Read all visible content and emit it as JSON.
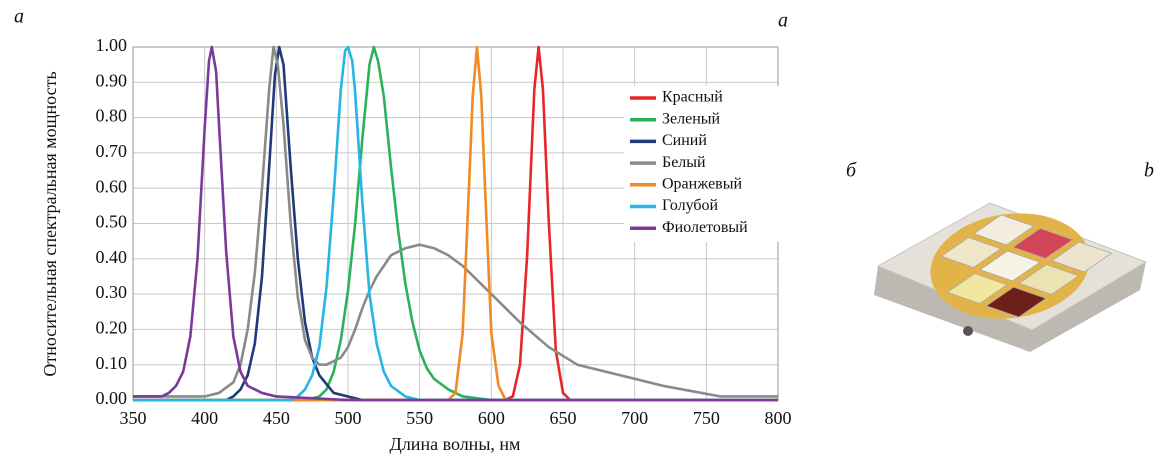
{
  "chart_data": {
    "type": "line",
    "y_label": "Относительная спектральная мощность",
    "x_label": "Длина волны, нм",
    "panel_labels": [
      "a",
      "a",
      "б",
      "b"
    ],
    "xlim": [
      350,
      800
    ],
    "xticks": [
      350,
      400,
      450,
      500,
      550,
      600,
      650,
      700,
      750,
      800
    ],
    "ylim": [
      0,
      1
    ],
    "yticks": [
      {
        "value": 0,
        "label": "0.00"
      },
      {
        "value": 0.1,
        "label": "0.10"
      },
      {
        "value": 0.2,
        "label": "0.20"
      },
      {
        "value": 0.3,
        "label": "0.30"
      },
      {
        "value": 0.4,
        "label": "0.40"
      },
      {
        "value": 0.5,
        "label": "0.50"
      },
      {
        "value": 0.6,
        "label": "0.60"
      },
      {
        "value": 0.7,
        "label": "0.70"
      },
      {
        "value": 0.8,
        "label": "0.80"
      },
      {
        "value": 0.9,
        "label": "0.90"
      },
      {
        "value": 1,
        "label": "1.00"
      }
    ],
    "grid": true,
    "legend": "upper right",
    "series": [
      {
        "name": "Красный",
        "color": "#e8262a",
        "x": [
          350,
          600,
          610,
          615,
          620,
          625,
          630,
          633,
          636,
          640,
          645,
          650,
          655,
          665,
          800
        ],
        "values": [
          0,
          0,
          0.001,
          0.01,
          0.1,
          0.41,
          0.88,
          1.0,
          0.88,
          0.51,
          0.14,
          0.02,
          0.0,
          0,
          0
        ]
      },
      {
        "name": "Зеленый",
        "color": "#2bb15a",
        "x": [
          350,
          470,
          480,
          485,
          490,
          495,
          500,
          505,
          510,
          515,
          518,
          521,
          525,
          530,
          535,
          540,
          545,
          550,
          555,
          560,
          570,
          580,
          600,
          800
        ],
        "values": [
          0,
          0,
          0.01,
          0.03,
          0.08,
          0.17,
          0.31,
          0.5,
          0.74,
          0.95,
          1.0,
          0.96,
          0.86,
          0.66,
          0.48,
          0.33,
          0.22,
          0.14,
          0.09,
          0.06,
          0.03,
          0.01,
          0,
          0
        ]
      },
      {
        "name": "Синий",
        "color": "#1f3a7a",
        "x": [
          350,
          415,
          420,
          425,
          430,
          435,
          440,
          445,
          449,
          452,
          455,
          460,
          465,
          470,
          475,
          480,
          490,
          500,
          510,
          800
        ],
        "values": [
          0,
          0,
          0.01,
          0.03,
          0.07,
          0.16,
          0.35,
          0.66,
          0.92,
          1.0,
          0.95,
          0.66,
          0.4,
          0.22,
          0.12,
          0.07,
          0.02,
          0.01,
          0,
          0
        ]
      },
      {
        "name": "Белый",
        "color": "#8a8a8a",
        "x": [
          350,
          380,
          400,
          410,
          420,
          425,
          430,
          435,
          440,
          445,
          448,
          451,
          455,
          460,
          465,
          470,
          475,
          480,
          485,
          490,
          495,
          500,
          505,
          510,
          515,
          520,
          525,
          530,
          540,
          550,
          560,
          570,
          580,
          590,
          600,
          620,
          640,
          660,
          680,
          700,
          720,
          740,
          760,
          800
        ],
        "values": [
          0.01,
          0.01,
          0.01,
          0.02,
          0.05,
          0.1,
          0.2,
          0.36,
          0.6,
          0.88,
          1.0,
          0.95,
          0.78,
          0.5,
          0.29,
          0.17,
          0.12,
          0.1,
          0.1,
          0.11,
          0.12,
          0.15,
          0.2,
          0.26,
          0.31,
          0.35,
          0.38,
          0.41,
          0.43,
          0.44,
          0.43,
          0.41,
          0.38,
          0.34,
          0.3,
          0.22,
          0.15,
          0.1,
          0.08,
          0.06,
          0.04,
          0.025,
          0.01,
          0.01
        ]
      },
      {
        "name": "Оранжевый",
        "color": "#f08a24",
        "x": [
          350,
          570,
          575,
          580,
          585,
          587,
          590,
          593,
          595,
          600,
          605,
          610,
          800
        ],
        "values": [
          0,
          0,
          0.02,
          0.19,
          0.66,
          0.86,
          1.0,
          0.86,
          0.66,
          0.19,
          0.04,
          0.0,
          0
        ]
      },
      {
        "name": "Голубой",
        "color": "#27b5e8",
        "x": [
          350,
          460,
          465,
          470,
          475,
          480,
          485,
          490,
          495,
          498,
          500,
          503,
          505,
          510,
          515,
          520,
          525,
          530,
          540,
          550,
          800
        ],
        "values": [
          0,
          0,
          0.01,
          0.03,
          0.07,
          0.15,
          0.32,
          0.58,
          0.88,
          0.99,
          1.0,
          0.96,
          0.87,
          0.56,
          0.3,
          0.16,
          0.08,
          0.04,
          0.01,
          0,
          0
        ]
      },
      {
        "name": "Фиолетовый",
        "color": "#7b3a9a",
        "x": [
          350,
          360,
          370,
          375,
          380,
          385,
          390,
          395,
          400,
          403,
          405,
          408,
          410,
          415,
          420,
          425,
          430,
          440,
          450,
          500,
          800
        ],
        "values": [
          0.01,
          0.01,
          0.01,
          0.02,
          0.04,
          0.08,
          0.18,
          0.4,
          0.77,
          0.96,
          1.0,
          0.93,
          0.78,
          0.42,
          0.18,
          0.08,
          0.04,
          0.02,
          0.01,
          0,
          0
        ]
      }
    ]
  }
}
